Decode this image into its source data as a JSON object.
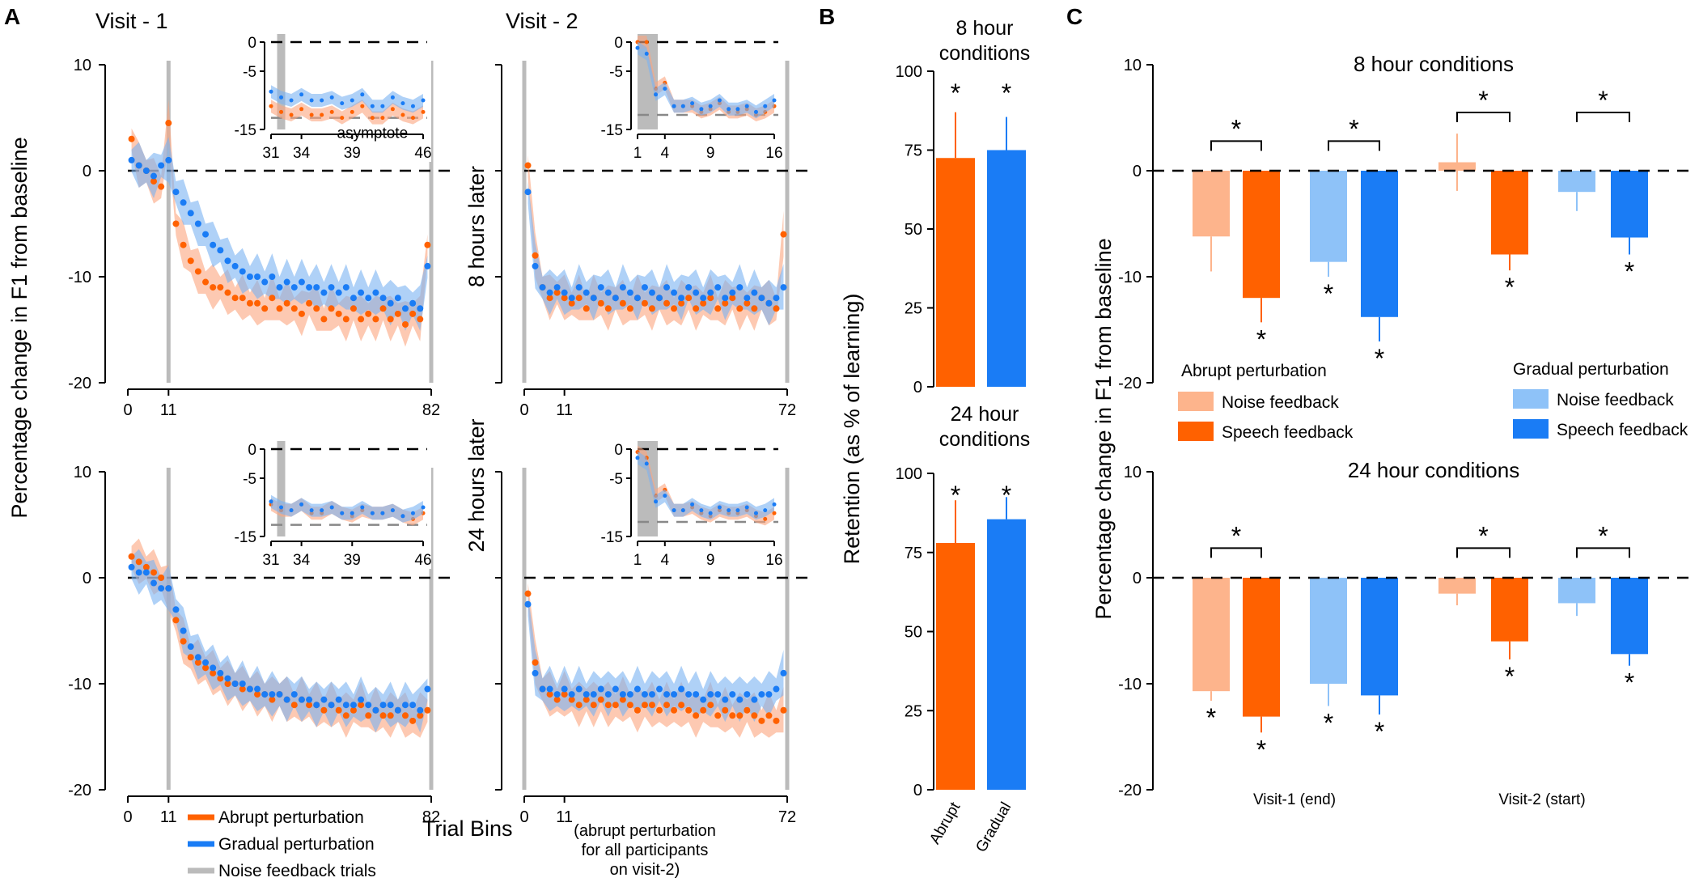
{
  "colors": {
    "abrupt": "#FF6100",
    "abrupt_band": "#FBA57E",
    "gradual": "#1A7CF5",
    "gradual_band": "#7AB2F2",
    "abrupt_noise": "#FDB48C",
    "gradual_noise": "#8EC2F8",
    "noise_trials": "#BBBBBB",
    "axis": "#000000"
  },
  "panel_labels": {
    "a": "A",
    "b": "B",
    "c": "C"
  },
  "panel_a": {
    "visit1_title": "Visit - 1",
    "visit2_title": "Visit - 2",
    "row1_label": "8 hours later",
    "row2_label": "24 hours later",
    "ylabel": "Percentage change in F1 from baseline",
    "xlabel": "Trial Bins",
    "visit2_note": [
      "(abrupt perturbation",
      "for all participants",
      "on visit-2)"
    ],
    "asymptote_label": "asymptote",
    "legend": [
      "Abrupt perturbation",
      "Gradual perturbation",
      "Noise feedback trials"
    ]
  },
  "panel_b": {
    "ylabel": "Retention (as % of learning)",
    "top_title": [
      "8 hour",
      "conditions"
    ],
    "bottom_title": [
      "24 hour",
      "conditions"
    ],
    "star": "*"
  },
  "panel_c": {
    "ylabel": "Percentage change in F1 from baseline",
    "top_title": "8 hour conditions",
    "bottom_title": "24 hour conditions",
    "legend_abrupt_title": "Abrupt perturbation",
    "legend_gradual_title": "Gradual perturbation",
    "legend_noise": "Noise feedback",
    "legend_speech": "Speech feedback",
    "star": "*"
  },
  "chart_data": [
    {
      "id": "A-8h-visit1",
      "type": "line",
      "xlabel": "Trial Bins",
      "ylabel": "Percentage change in F1 from baseline",
      "xlim": [
        0,
        82
      ],
      "ylim": [
        -20,
        10
      ],
      "xticks": [
        0,
        11,
        82
      ],
      "yticks": [
        10,
        0,
        -10,
        -20
      ],
      "noise_trial_markers": [
        11,
        82
      ],
      "series": [
        {
          "name": "Abrupt perturbation",
          "x": [
            1,
            3,
            5,
            7,
            9,
            11,
            13,
            15,
            17,
            19,
            21,
            23,
            25,
            27,
            29,
            31,
            33,
            35,
            37,
            39,
            41,
            43,
            45,
            47,
            49,
            51,
            53,
            55,
            57,
            59,
            61,
            63,
            65,
            67,
            69,
            71,
            73,
            75,
            77,
            79,
            81
          ],
          "y": [
            3,
            0.5,
            0,
            -1,
            -1.5,
            4.5,
            -5,
            -7,
            -8.5,
            -9.5,
            -10.5,
            -11,
            -11,
            -11.5,
            -12,
            -12,
            -12.5,
            -12.5,
            -13,
            -12,
            -13,
            -12.5,
            -13,
            -13.5,
            -12.5,
            -13,
            -14,
            -13,
            -13.5,
            -14,
            -13,
            -14,
            -13.5,
            -14,
            -13,
            -14,
            -13.5,
            -14.5,
            -13.5,
            -14,
            -7
          ]
        },
        {
          "name": "Gradual perturbation",
          "x": [
            1,
            3,
            5,
            7,
            9,
            11,
            13,
            15,
            17,
            19,
            21,
            23,
            25,
            27,
            29,
            31,
            33,
            35,
            37,
            39,
            41,
            43,
            45,
            47,
            49,
            51,
            53,
            55,
            57,
            59,
            61,
            63,
            65,
            67,
            69,
            71,
            73,
            75,
            77,
            79,
            81
          ],
          "y": [
            1,
            0.5,
            0,
            -0.5,
            0.5,
            1,
            -2,
            -3,
            -4,
            -5,
            -6,
            -7,
            -7.5,
            -8.5,
            -9,
            -9.5,
            -10,
            -10,
            -10.5,
            -10,
            -11,
            -10.5,
            -11,
            -10.5,
            -11,
            -11,
            -11.5,
            -11,
            -11.5,
            -11,
            -12,
            -11.5,
            -12,
            -11.5,
            -12,
            -12.5,
            -12,
            -13,
            -12.5,
            -13,
            -9
          ]
        }
      ],
      "inset": {
        "xlim": [
          31,
          46
        ],
        "xticks": [
          31,
          34,
          39,
          46
        ],
        "ylim": [
          -15,
          0
        ],
        "yticks": [
          0,
          -5,
          -15
        ],
        "asymptote": -13,
        "label": "asymptote"
      }
    },
    {
      "id": "A-8h-visit2",
      "type": "line",
      "xlim": [
        0,
        72
      ],
      "ylim": [
        -20,
        10
      ],
      "xticks": [
        0,
        11,
        72
      ],
      "noise_trial_markers": [
        0,
        72
      ],
      "series": [
        {
          "name": "Abrupt perturbation",
          "x": [
            1,
            3,
            5,
            7,
            9,
            11,
            13,
            15,
            17,
            19,
            21,
            23,
            25,
            27,
            29,
            31,
            33,
            35,
            37,
            39,
            41,
            43,
            45,
            47,
            49,
            51,
            53,
            55,
            57,
            59,
            61,
            63,
            65,
            67,
            69,
            71
          ],
          "y": [
            0.5,
            -8,
            -11,
            -12,
            -11.5,
            -12,
            -12.5,
            -12,
            -13,
            -12,
            -12.5,
            -13,
            -12,
            -12.5,
            -13,
            -12,
            -12.5,
            -13,
            -12,
            -12.5,
            -13,
            -12.5,
            -12,
            -13,
            -12.5,
            -12,
            -13,
            -12.5,
            -12,
            -13,
            -12.5,
            -13,
            -12,
            -12.5,
            -13,
            -6
          ]
        },
        {
          "name": "Gradual perturbation",
          "x": [
            1,
            3,
            5,
            7,
            9,
            11,
            13,
            15,
            17,
            19,
            21,
            23,
            25,
            27,
            29,
            31,
            33,
            35,
            37,
            39,
            41,
            43,
            45,
            47,
            49,
            51,
            53,
            55,
            57,
            59,
            61,
            63,
            65,
            67,
            69,
            71
          ],
          "y": [
            -2,
            -9,
            -11,
            -11.5,
            -11,
            -11.5,
            -12,
            -11,
            -11.5,
            -12,
            -11,
            -11.5,
            -12,
            -11,
            -11.5,
            -12,
            -11,
            -11.5,
            -12,
            -11,
            -11.5,
            -12,
            -11,
            -11.5,
            -12,
            -11.5,
            -11,
            -12,
            -11.5,
            -11,
            -12,
            -11.5,
            -12,
            -12.5,
            -12,
            -11
          ]
        }
      ],
      "inset": {
        "xlim": [
          1,
          16
        ],
        "xticks": [
          1,
          4,
          9,
          16
        ],
        "ylim": [
          -15,
          0
        ],
        "yticks": [
          0,
          -5,
          -15
        ],
        "asymptote": -12.5
      }
    },
    {
      "id": "A-24h-visit1",
      "type": "line",
      "xlim": [
        0,
        82
      ],
      "ylim": [
        -20,
        10
      ],
      "xticks": [
        0,
        11,
        82
      ],
      "noise_trial_markers": [
        11,
        82
      ],
      "series": [
        {
          "name": "Abrupt perturbation",
          "x": [
            1,
            3,
            5,
            7,
            9,
            11,
            13,
            15,
            17,
            19,
            21,
            23,
            25,
            27,
            29,
            31,
            33,
            35,
            37,
            39,
            41,
            43,
            45,
            47,
            49,
            51,
            53,
            55,
            57,
            59,
            61,
            63,
            65,
            67,
            69,
            71,
            73,
            75,
            77,
            79,
            81
          ],
          "y": [
            2,
            1.5,
            1,
            0.5,
            0,
            -1,
            -4,
            -6,
            -7.5,
            -8,
            -8.5,
            -9,
            -9.5,
            -10,
            -10,
            -10.5,
            -10.5,
            -11,
            -11,
            -11.5,
            -11,
            -11.5,
            -12,
            -11.5,
            -12,
            -12,
            -12.5,
            -12,
            -12.5,
            -13,
            -12.5,
            -12,
            -13,
            -12.5,
            -13,
            -13,
            -12.5,
            -13,
            -13.5,
            -13,
            -12.5
          ]
        },
        {
          "name": "Gradual perturbation",
          "x": [
            1,
            3,
            5,
            7,
            9,
            11,
            13,
            15,
            17,
            19,
            21,
            23,
            25,
            27,
            29,
            31,
            33,
            35,
            37,
            39,
            41,
            43,
            45,
            47,
            49,
            51,
            53,
            55,
            57,
            59,
            61,
            63,
            65,
            67,
            69,
            71,
            73,
            75,
            77,
            79,
            81
          ],
          "y": [
            1,
            0.5,
            0.5,
            -0.5,
            -1,
            -1,
            -3,
            -5,
            -6.5,
            -7.5,
            -8,
            -8.5,
            -9,
            -9.5,
            -10,
            -10,
            -10.5,
            -10.5,
            -11,
            -11,
            -11,
            -11.5,
            -11,
            -11.5,
            -11.5,
            -12,
            -11.5,
            -12,
            -11.5,
            -12,
            -12,
            -11.5,
            -12,
            -12.5,
            -12,
            -12,
            -12.5,
            -12,
            -12,
            -12.5,
            -10.5
          ]
        }
      ],
      "inset": {
        "xlim": [
          31,
          46
        ],
        "xticks": [
          31,
          34,
          39,
          46
        ],
        "ylim": [
          -15,
          0
        ],
        "yticks": [
          0,
          -5,
          -15
        ],
        "asymptote": -13
      }
    },
    {
      "id": "A-24h-visit2",
      "type": "line",
      "xlim": [
        0,
        72
      ],
      "ylim": [
        -20,
        10
      ],
      "xticks": [
        0,
        11,
        72
      ],
      "noise_trial_markers": [
        0,
        72
      ],
      "series": [
        {
          "name": "Abrupt perturbation",
          "x": [
            1,
            3,
            5,
            7,
            9,
            11,
            13,
            15,
            17,
            19,
            21,
            23,
            25,
            27,
            29,
            31,
            33,
            35,
            37,
            39,
            41,
            43,
            45,
            47,
            49,
            51,
            53,
            55,
            57,
            59,
            61,
            63,
            65,
            67,
            69,
            71
          ],
          "y": [
            -1.5,
            -8,
            -10.5,
            -11,
            -11.5,
            -11,
            -11.5,
            -12,
            -11.5,
            -12,
            -11.5,
            -12,
            -12,
            -11.5,
            -12,
            -12.5,
            -12,
            -12,
            -12.5,
            -12,
            -12.5,
            -12,
            -12.5,
            -13,
            -12.5,
            -12,
            -13,
            -12.5,
            -13,
            -13,
            -12.5,
            -13,
            -13.5,
            -13,
            -13.5,
            -12.5
          ]
        },
        {
          "name": "Gradual perturbation",
          "x": [
            1,
            3,
            5,
            7,
            9,
            11,
            13,
            15,
            17,
            19,
            21,
            23,
            25,
            27,
            29,
            31,
            33,
            35,
            37,
            39,
            41,
            43,
            45,
            47,
            49,
            51,
            53,
            55,
            57,
            59,
            61,
            63,
            65,
            67,
            69,
            71
          ],
          "y": [
            -2.5,
            -9,
            -10.5,
            -10.5,
            -11,
            -10.5,
            -11,
            -10.5,
            -11,
            -11,
            -10.5,
            -11,
            -10.5,
            -11,
            -11,
            -10.5,
            -11,
            -11,
            -10.5,
            -11,
            -11,
            -10.5,
            -11,
            -11,
            -11.5,
            -11,
            -11,
            -11.5,
            -11,
            -11.5,
            -11,
            -11.5,
            -11,
            -11,
            -10.5,
            -9
          ]
        }
      ],
      "inset": {
        "xlim": [
          1,
          16
        ],
        "xticks": [
          1,
          4,
          9,
          16
        ],
        "ylim": [
          -15,
          0
        ],
        "yticks": [
          0,
          -5,
          -15
        ],
        "asymptote": -12.5
      }
    },
    {
      "id": "B-8h",
      "type": "bar",
      "title": "8 hour conditions",
      "ylabel": "Retention (as % of learning)",
      "categories": [
        "Abrupt",
        "Gradual"
      ],
      "values": [
        72.5,
        75
      ],
      "errors": [
        14.5,
        10.5
      ],
      "ylim": [
        0,
        100
      ],
      "yticks": [
        0,
        25,
        50,
        75,
        100
      ],
      "significant": [
        true,
        true
      ]
    },
    {
      "id": "B-24h",
      "type": "bar",
      "title": "24 hour conditions",
      "ylabel": "Retention (as % of learning)",
      "categories": [
        "Abrupt",
        "Gradual"
      ],
      "values": [
        78,
        85.5
      ],
      "errors": [
        13.5,
        7
      ],
      "ylim": [
        0,
        100
      ],
      "yticks": [
        0,
        25,
        50,
        75,
        100
      ],
      "significant": [
        true,
        true
      ]
    },
    {
      "id": "C-8h",
      "type": "bar",
      "title": "8 hour conditions",
      "ylabel": "Percentage change in F1 from baseline",
      "ylim": [
        -20,
        10
      ],
      "yticks": [
        10,
        0,
        -10,
        -20
      ],
      "series": [
        {
          "name": "Abrupt perturbation / Noise feedback",
          "values": [
            -6.2,
            0.8
          ],
          "errors": [
            3.3,
            2.7
          ],
          "significant": [
            false,
            false
          ]
        },
        {
          "name": "Abrupt perturbation / Speech feedback",
          "values": [
            -12,
            -7.9
          ],
          "errors": [
            2.3,
            1.5
          ],
          "significant": [
            true,
            true
          ]
        },
        {
          "name": "Gradual perturbation / Noise feedback",
          "values": [
            -8.6,
            -2
          ],
          "errors": [
            1.4,
            1.8
          ],
          "significant": [
            true,
            false
          ]
        },
        {
          "name": "Gradual perturbation / Speech feedback",
          "values": [
            -13.8,
            -6.3
          ],
          "errors": [
            2.3,
            1.6
          ],
          "significant": [
            true,
            true
          ]
        }
      ],
      "brackets": [
        "Visit-1 abrupt",
        "Visit-1 gradual",
        "Visit-2 abrupt",
        "Visit-2 gradual"
      ]
    },
    {
      "id": "C-24h",
      "type": "bar",
      "title": "24 hour conditions",
      "categories": [
        "Visit-1 (end)",
        "Visit-2 (start)"
      ],
      "ylim": [
        -20,
        10
      ],
      "yticks": [
        10,
        0,
        -10,
        -20
      ],
      "series": [
        {
          "name": "Abrupt perturbation / Noise feedback",
          "values": [
            -10.7,
            -1.5
          ],
          "errors": [
            0.9,
            1.1
          ],
          "significant": [
            true,
            false
          ]
        },
        {
          "name": "Abrupt perturbation / Speech feedback",
          "values": [
            -13.1,
            -6
          ],
          "errors": [
            1.5,
            1.7
          ],
          "significant": [
            true,
            true
          ]
        },
        {
          "name": "Gradual perturbation / Noise feedback",
          "values": [
            -10,
            -2.4
          ],
          "errors": [
            2.1,
            1.2
          ],
          "significant": [
            true,
            false
          ]
        },
        {
          "name": "Gradual perturbation / Speech feedback",
          "values": [
            -11.1,
            -7.2
          ],
          "errors": [
            1.8,
            1.1
          ],
          "significant": [
            true,
            true
          ]
        }
      ],
      "brackets": [
        "Visit-1 abrupt",
        "Visit-2 abrupt",
        "Visit-2 gradual"
      ]
    }
  ]
}
